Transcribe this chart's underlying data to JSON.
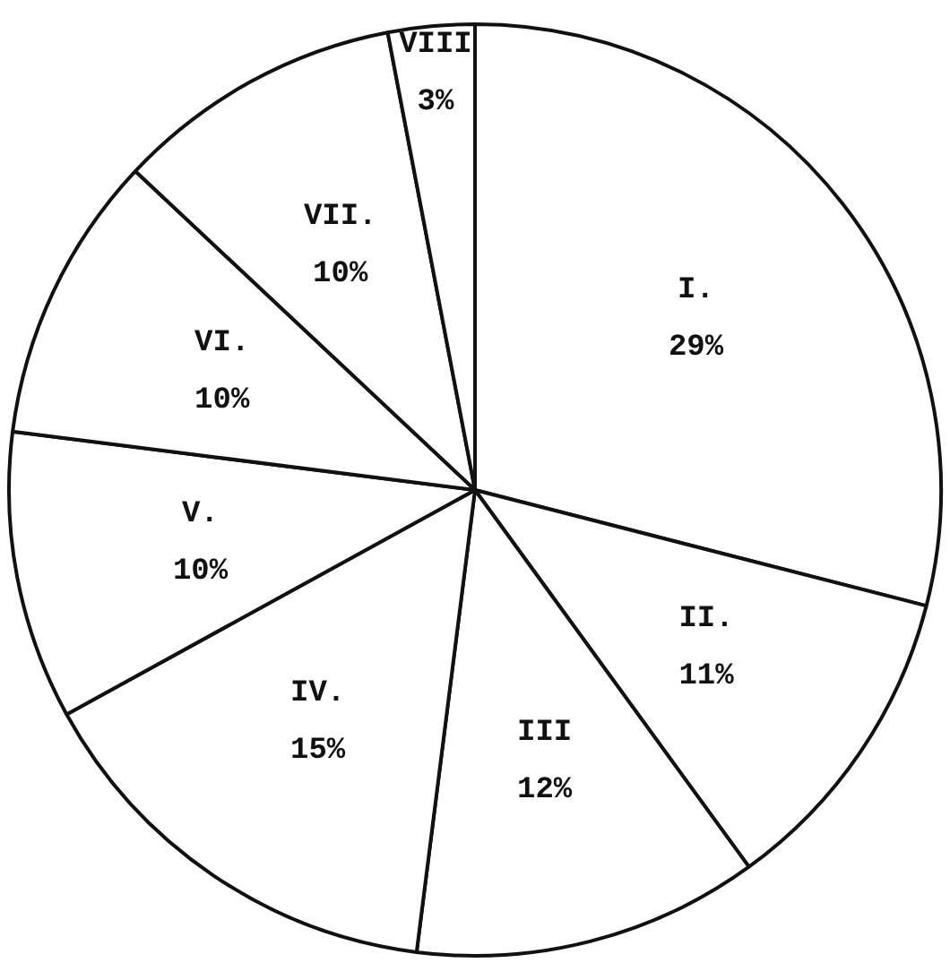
{
  "chart_data": {
    "type": "pie",
    "categories": [
      "I.",
      "II.",
      "III",
      "IV.",
      "V.",
      "VI.",
      "VII.",
      "VIII"
    ],
    "values": [
      29,
      11,
      12,
      15,
      10,
      10,
      10,
      3
    ],
    "value_labels": [
      "29%",
      "11%",
      "12%",
      "15%",
      "10%",
      "10%",
      "10%",
      "3%"
    ],
    "colors": [
      "#ffffff",
      "#ffffff",
      "#ffffff",
      "#ffffff",
      "#ffffff",
      "#ffffff",
      "#ffffff",
      "#ffffff"
    ],
    "legend": false
  }
}
